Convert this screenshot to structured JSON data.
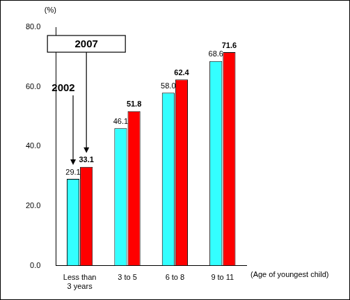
{
  "chart_data": {
    "type": "bar",
    "x_label": "(Age of youngest child)",
    "y_label": "(%)",
    "categories": [
      "Less than 3 years",
      "3 to 5",
      "6 to 8",
      "9 to 11"
    ],
    "series": [
      {
        "name": "2002",
        "color": "#33ffff",
        "values": [
          29.1,
          46.1,
          58.0,
          68.6
        ],
        "value_labels": [
          "29.1",
          "46.1",
          "58.0",
          "68.6"
        ]
      },
      {
        "name": "2007",
        "color": "#ff0000",
        "values": [
          33.1,
          51.8,
          62.4,
          71.6
        ],
        "value_labels": [
          "33.1",
          "51.8",
          "62.4",
          "71.6"
        ]
      }
    ],
    "ylim": [
      0,
      80
    ],
    "yticks": [
      {
        "value": 0,
        "label": "0.0"
      },
      {
        "value": 20,
        "label": "20.0"
      },
      {
        "value": 40,
        "label": "40.0"
      },
      {
        "value": 60,
        "label": "60.0"
      },
      {
        "value": 80,
        "label": "80.0"
      }
    ],
    "grid": false,
    "data_labels": true
  }
}
